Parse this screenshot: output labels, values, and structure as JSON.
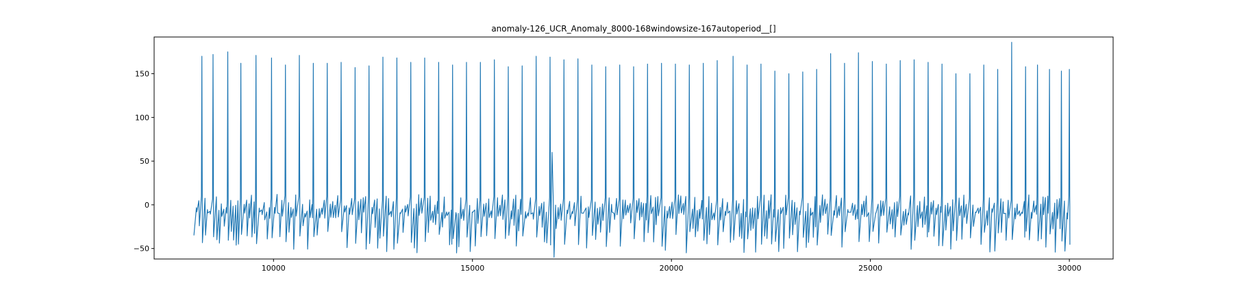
{
  "chart_data": {
    "type": "line",
    "title": "anomaly-126_UCR_Anomaly_8000-168windowsize-167autoperiod__[]",
    "xlabel": "",
    "ylabel": "",
    "xlim": [
      7000,
      31100
    ],
    "ylim": [
      -62,
      192
    ],
    "x_ticks": [
      {
        "value": 10000,
        "label": "10000"
      },
      {
        "value": 15000,
        "label": "15000"
      },
      {
        "value": 20000,
        "label": "20000"
      },
      {
        "value": 25000,
        "label": "25000"
      },
      {
        "value": 30000,
        "label": "30000"
      }
    ],
    "y_ticks": [
      {
        "value": -50,
        "label": "−50"
      },
      {
        "value": 0,
        "label": "0"
      },
      {
        "value": 50,
        "label": "50"
      },
      {
        "value": 100,
        "label": "100"
      },
      {
        "value": 150,
        "label": "150"
      }
    ],
    "grid": false,
    "legend": "none",
    "series": [
      {
        "color": "#1f77b4",
        "x_start": 8000,
        "x_end": 30000,
        "beat_period": 167,
        "baseline_range": [
          -10,
          12
        ],
        "trough_range": [
          -55,
          -20
        ],
        "peaks": [
          {
            "x": 8200,
            "y": 170
          },
          {
            "x": 8480,
            "y": 172
          },
          {
            "x": 8850,
            "y": 175
          },
          {
            "x": 9180,
            "y": 162
          },
          {
            "x": 9560,
            "y": 171
          },
          {
            "x": 9950,
            "y": 168
          },
          {
            "x": 10300,
            "y": 160
          },
          {
            "x": 10650,
            "y": 171
          },
          {
            "x": 11000,
            "y": 162
          },
          {
            "x": 11350,
            "y": 162
          },
          {
            "x": 11700,
            "y": 163
          },
          {
            "x": 12050,
            "y": 157
          },
          {
            "x": 12400,
            "y": 159
          },
          {
            "x": 12750,
            "y": 169
          },
          {
            "x": 13100,
            "y": 168
          },
          {
            "x": 13450,
            "y": 163
          },
          {
            "x": 13800,
            "y": 168
          },
          {
            "x": 14150,
            "y": 163
          },
          {
            "x": 14500,
            "y": 160
          },
          {
            "x": 14850,
            "y": 163
          },
          {
            "x": 15200,
            "y": 163
          },
          {
            "x": 15550,
            "y": 166
          },
          {
            "x": 15900,
            "y": 158
          },
          {
            "x": 16250,
            "y": 159
          },
          {
            "x": 16600,
            "y": 170
          },
          {
            "x": 16950,
            "y": 169
          },
          {
            "x": 17300,
            "y": 166
          },
          {
            "x": 17650,
            "y": 167
          },
          {
            "x": 18000,
            "y": 160
          },
          {
            "x": 18350,
            "y": 158
          },
          {
            "x": 18700,
            "y": 160
          },
          {
            "x": 19050,
            "y": 158
          },
          {
            "x": 19400,
            "y": 161
          },
          {
            "x": 19750,
            "y": 162
          },
          {
            "x": 20100,
            "y": 161
          },
          {
            "x": 20450,
            "y": 160
          },
          {
            "x": 20800,
            "y": 162
          },
          {
            "x": 21150,
            "y": 165
          },
          {
            "x": 21550,
            "y": 170
          },
          {
            "x": 21900,
            "y": 160
          },
          {
            "x": 22250,
            "y": 161
          },
          {
            "x": 22600,
            "y": 153
          },
          {
            "x": 22950,
            "y": 150
          },
          {
            "x": 23300,
            "y": 152
          },
          {
            "x": 23650,
            "y": 155
          },
          {
            "x": 24000,
            "y": 173
          },
          {
            "x": 24350,
            "y": 162
          },
          {
            "x": 24700,
            "y": 174
          },
          {
            "x": 25050,
            "y": 164
          },
          {
            "x": 25400,
            "y": 161
          },
          {
            "x": 25750,
            "y": 165
          },
          {
            "x": 26100,
            "y": 166
          },
          {
            "x": 26450,
            "y": 163
          },
          {
            "x": 26800,
            "y": 161
          },
          {
            "x": 27150,
            "y": 150
          },
          {
            "x": 27500,
            "y": 150
          },
          {
            "x": 27850,
            "y": 160
          },
          {
            "x": 28200,
            "y": 155
          },
          {
            "x": 28550,
            "y": 186
          },
          {
            "x": 28900,
            "y": 158
          },
          {
            "x": 29200,
            "y": 160
          },
          {
            "x": 29500,
            "y": 155
          },
          {
            "x": 29800,
            "y": 153
          },
          {
            "x": 30000,
            "y": 155
          }
        ],
        "notable_points": [
          {
            "x": 17000,
            "y": 60
          },
          {
            "x": 17050,
            "y": -60
          },
          {
            "x": 14600,
            "y": -55
          },
          {
            "x": 28550,
            "y": 186
          }
        ]
      }
    ]
  }
}
